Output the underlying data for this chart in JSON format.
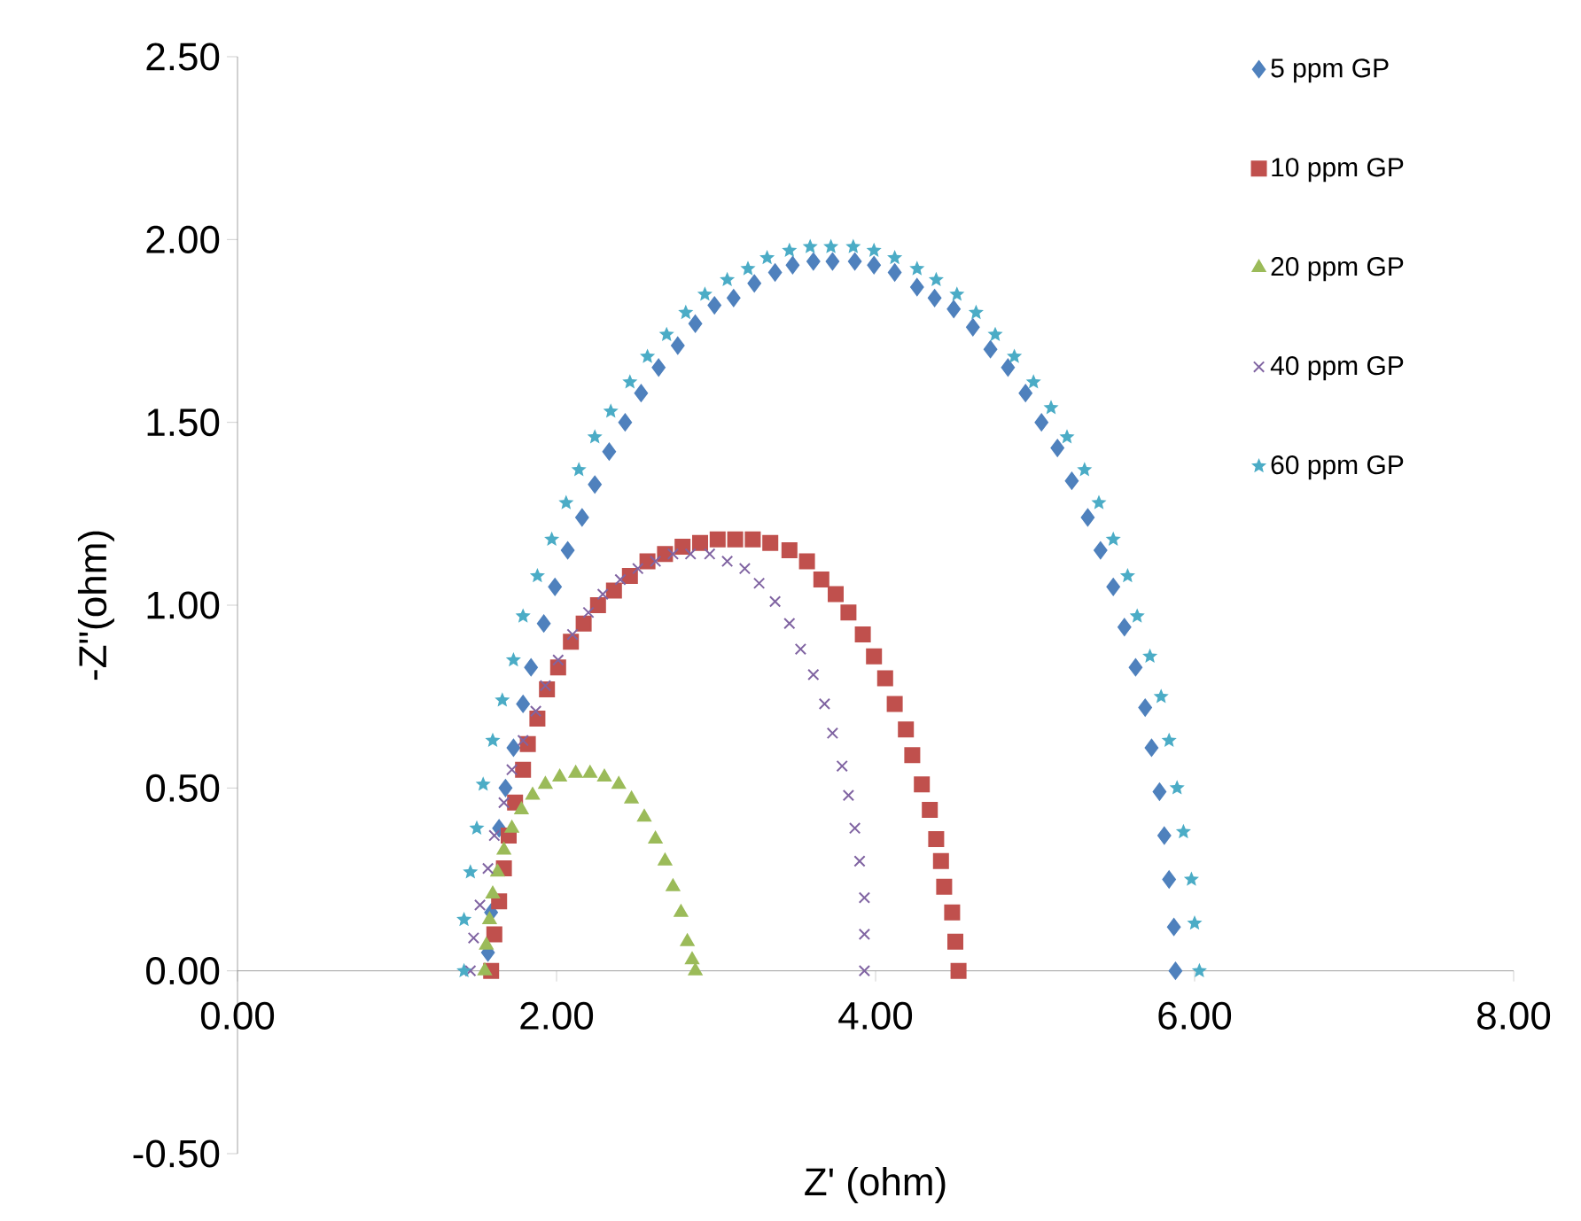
{
  "chart_data": {
    "type": "scatter",
    "xlabel": "Z' (ohm)",
    "ylabel": "-Z\"(ohm)",
    "legend": "top right",
    "xlim": [
      0,
      8
    ],
    "ylim": [
      -0.5,
      2.5
    ],
    "xticks": [
      {
        "value": 0,
        "label": "0.00"
      },
      {
        "value": 2,
        "label": "2.00"
      },
      {
        "value": 4,
        "label": "4.00"
      },
      {
        "value": 6,
        "label": "6.00"
      },
      {
        "value": 8,
        "label": "8.00"
      }
    ],
    "yticks": [
      {
        "value": -0.5,
        "label": "-0.50"
      },
      {
        "value": 0,
        "label": "0.00"
      },
      {
        "value": 0.5,
        "label": "0.50"
      },
      {
        "value": 1,
        "label": "1.00"
      },
      {
        "value": 1.5,
        "label": "1.50"
      },
      {
        "value": 2,
        "label": "2.00"
      },
      {
        "value": 2.5,
        "label": "2.50"
      }
    ],
    "series": [
      {
        "name": "5 ppm GP",
        "color": "#4f81bd",
        "marker": "diamond",
        "x": [
          1.57,
          1.59,
          1.61,
          1.64,
          1.68,
          1.73,
          1.79,
          1.84,
          1.92,
          1.99,
          2.07,
          2.16,
          2.24,
          2.33,
          2.43,
          2.53,
          2.64,
          2.76,
          2.87,
          2.99,
          3.11,
          3.24,
          3.37,
          3.48,
          3.61,
          3.73,
          3.87,
          3.99,
          4.12,
          4.26,
          4.37,
          4.49,
          4.61,
          4.72,
          4.83,
          4.94,
          5.04,
          5.14,
          5.23,
          5.33,
          5.41,
          5.49,
          5.56,
          5.63,
          5.69,
          5.73,
          5.78,
          5.81,
          5.84,
          5.87,
          5.88
        ],
        "values": [
          0.05,
          0.16,
          null,
          0.39,
          0.5,
          0.61,
          0.73,
          0.83,
          0.95,
          1.05,
          1.15,
          1.24,
          1.33,
          1.42,
          1.5,
          1.58,
          1.65,
          1.71,
          1.77,
          1.82,
          1.84,
          1.88,
          1.91,
          1.93,
          1.94,
          1.94,
          1.94,
          1.93,
          1.91,
          1.87,
          1.84,
          1.81,
          1.76,
          1.7,
          1.65,
          1.58,
          1.5,
          1.43,
          1.34,
          1.24,
          1.15,
          1.05,
          0.94,
          0.83,
          0.72,
          0.61,
          0.49,
          0.37,
          0.25,
          0.12,
          0
        ]
      },
      {
        "name": "10 ppm GP",
        "color": "#c0504d",
        "marker": "square",
        "x": [
          1.59,
          1.61,
          1.64,
          1.67,
          1.7,
          1.74,
          1.79,
          1.82,
          1.88,
          1.94,
          2.01,
          2.09,
          2.17,
          2.26,
          2.36,
          2.46,
          2.57,
          2.68,
          2.79,
          2.9,
          3.01,
          3.12,
          3.23,
          3.34,
          3.46,
          3.57,
          3.66,
          3.75,
          3.83,
          3.92,
          3.99,
          4.06,
          4.12,
          4.19,
          4.23,
          4.29,
          4.34,
          4.38,
          4.41,
          4.43,
          4.48,
          4.5,
          4.52
        ],
        "values": [
          0,
          0.1,
          0.19,
          0.28,
          0.37,
          0.46,
          0.55,
          0.62,
          0.69,
          0.77,
          0.83,
          0.9,
          0.95,
          1,
          1.04,
          1.08,
          1.12,
          1.14,
          1.16,
          1.17,
          1.18,
          1.18,
          1.18,
          1.17,
          1.15,
          1.12,
          1.07,
          1.03,
          0.98,
          0.92,
          0.86,
          0.8,
          0.73,
          0.66,
          0.59,
          0.51,
          0.44,
          0.36,
          0.3,
          0.23,
          0.16,
          0.08,
          0
        ]
      },
      {
        "name": "20 ppm GP",
        "color": "#9bbb59",
        "marker": "triangle",
        "x": [
          1.55,
          1.56,
          1.58,
          1.6,
          1.63,
          1.67,
          1.72,
          1.78,
          1.85,
          1.93,
          2.02,
          2.12,
          2.21,
          2.3,
          2.39,
          2.47,
          2.55,
          2.62,
          2.68,
          2.73,
          2.78,
          2.82,
          2.85,
          2.87
        ],
        "values": [
          0,
          0.07,
          0.14,
          0.21,
          0.27,
          0.33,
          0.39,
          0.44,
          0.48,
          0.51,
          0.53,
          0.54,
          0.54,
          0.53,
          0.51,
          0.47,
          0.42,
          0.36,
          0.3,
          0.23,
          0.16,
          0.08,
          0.03,
          0
        ]
      },
      {
        "name": "40 ppm GP",
        "color": "#8064a2",
        "marker": "cross",
        "x": [
          1.46,
          1.48,
          1.52,
          1.57,
          1.61,
          1.67,
          1.72,
          1.79,
          1.87,
          1.93,
          2.01,
          2.1,
          2.2,
          2.29,
          2.4,
          2.51,
          2.62,
          2.73,
          2.84,
          2.96,
          3.07,
          3.18,
          3.27,
          3.37,
          3.46,
          3.53,
          3.61,
          3.68,
          3.73,
          3.79,
          3.83,
          3.87,
          3.9,
          3.93,
          3.93,
          3.93
        ],
        "values": [
          0,
          0.09,
          0.18,
          0.28,
          0.37,
          0.46,
          0.55,
          0.63,
          0.71,
          0.78,
          0.85,
          0.92,
          0.98,
          1.03,
          1.07,
          1.1,
          1.12,
          1.14,
          1.14,
          1.14,
          1.12,
          1.1,
          1.06,
          1.01,
          0.95,
          0.88,
          0.81,
          0.73,
          0.65,
          0.56,
          0.48,
          0.39,
          0.3,
          0.2,
          0.1,
          0
        ]
      },
      {
        "name": "60 ppm GP",
        "color": "#4bacc6",
        "marker": "star",
        "x": [
          1.42,
          1.42,
          1.46,
          1.5,
          1.54,
          1.6,
          1.66,
          1.73,
          1.79,
          1.88,
          1.97,
          2.06,
          2.14,
          2.24,
          2.34,
          2.46,
          2.57,
          2.69,
          2.81,
          2.93,
          3.07,
          3.2,
          3.32,
          3.46,
          3.59,
          3.72,
          3.86,
          3.99,
          4.12,
          4.26,
          4.38,
          4.51,
          4.63,
          4.75,
          4.87,
          4.99,
          5.1,
          5.2,
          5.31,
          5.4,
          5.49,
          5.58,
          5.64,
          5.72,
          5.79,
          5.84,
          5.89,
          5.93,
          5.98,
          6,
          6.03
        ],
        "values": [
          0,
          0.14,
          0.27,
          0.39,
          0.51,
          0.63,
          0.74,
          0.85,
          0.97,
          1.08,
          1.18,
          1.28,
          1.37,
          1.46,
          1.53,
          1.61,
          1.68,
          1.74,
          1.8,
          1.85,
          1.89,
          1.92,
          1.95,
          1.97,
          1.98,
          1.98,
          1.98,
          1.97,
          1.95,
          1.92,
          1.89,
          1.85,
          1.8,
          1.74,
          1.68,
          1.61,
          1.54,
          1.46,
          1.37,
          1.28,
          1.18,
          1.08,
          0.97,
          0.86,
          0.75,
          0.63,
          0.5,
          0.38,
          0.25,
          0.13,
          0
        ]
      }
    ]
  }
}
